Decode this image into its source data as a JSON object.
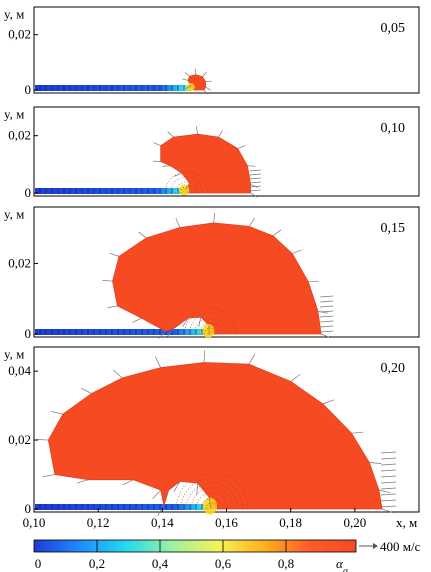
{
  "chart_data": {
    "type": "area",
    "units": {
      "y_axis": "y, м",
      "x_axis": "x, м",
      "velocity": "400 м/с"
    },
    "xlim": [
      0.1,
      0.22
    ],
    "x_ticks": [
      "0,10",
      "0,12",
      "0,14",
      "0,16",
      "0,18",
      "0,20"
    ],
    "panels": [
      {
        "time_label": "0,05",
        "ylim": [
          0,
          0.03
        ],
        "y_ticks": [
          {
            "v": 0,
            "label": "0"
          },
          {
            "v": 0.02,
            "label": "0,02"
          }
        ],
        "cloud": [
          [
            0.1495,
            0
          ],
          [
            0.149,
            0.0015
          ],
          [
            0.148,
            0.0035
          ],
          [
            0.1485,
            0.005
          ],
          [
            0.1505,
            0.0055
          ],
          [
            0.1525,
            0.0048
          ],
          [
            0.1535,
            0.003
          ],
          [
            0.1535,
            0.001
          ],
          [
            0.153,
            0
          ]
        ]
      },
      {
        "time_label": "0,10",
        "ylim": [
          0,
          0.03
        ],
        "y_ticks": [
          {
            "v": 0,
            "label": "0"
          },
          {
            "v": 0.02,
            "label": "0,02"
          }
        ],
        "cloud": [
          [
            0.1475,
            0
          ],
          [
            0.1485,
            0.0035
          ],
          [
            0.146,
            0.007
          ],
          [
            0.1425,
            0.0095
          ],
          [
            0.1395,
            0.011
          ],
          [
            0.1395,
            0.0165
          ],
          [
            0.1435,
            0.0195
          ],
          [
            0.151,
            0.0205
          ],
          [
            0.1575,
            0.0195
          ],
          [
            0.1635,
            0.0155
          ],
          [
            0.1665,
            0.0095
          ],
          [
            0.1675,
            0.003
          ],
          [
            0.1675,
            0
          ]
        ]
      },
      {
        "time_label": "0,15",
        "ylim": [
          0,
          0.036
        ],
        "y_ticks": [
          {
            "v": 0,
            "label": "0"
          },
          {
            "v": 0.02,
            "label": "0,02"
          }
        ],
        "cloud": [
          [
            0.155,
            0
          ],
          [
            0.1545,
            0.0025
          ],
          [
            0.152,
            0.0048
          ],
          [
            0.148,
            0.0045
          ],
          [
            0.1435,
            0.0015
          ],
          [
            0.141,
            0.0008
          ],
          [
            0.1335,
            0.0045
          ],
          [
            0.126,
            0.008
          ],
          [
            0.1245,
            0.015
          ],
          [
            0.1265,
            0.022
          ],
          [
            0.135,
            0.0272
          ],
          [
            0.1455,
            0.0302
          ],
          [
            0.156,
            0.0315
          ],
          [
            0.167,
            0.0305
          ],
          [
            0.1745,
            0.0278
          ],
          [
            0.1805,
            0.0228
          ],
          [
            0.1855,
            0.0148
          ],
          [
            0.1885,
            0.0065
          ],
          [
            0.1895,
            0
          ]
        ]
      },
      {
        "time_label": "0,20",
        "ylim": [
          0,
          0.047
        ],
        "y_ticks": [
          {
            "v": 0,
            "label": "0"
          },
          {
            "v": 0.02,
            "label": "0,02"
          },
          {
            "v": 0.04,
            "label": "0,04"
          }
        ],
        "cloud": [
          [
            0.1555,
            0
          ],
          [
            0.1545,
            0.0035
          ],
          [
            0.151,
            0.0075
          ],
          [
            0.1455,
            0.008
          ],
          [
            0.142,
            0.0055
          ],
          [
            0.1405,
            0.001
          ],
          [
            0.1395,
            0.0055
          ],
          [
            0.131,
            0.0085
          ],
          [
            0.117,
            0.0085
          ],
          [
            0.1065,
            0.01
          ],
          [
            0.1045,
            0.02
          ],
          [
            0.109,
            0.0275
          ],
          [
            0.118,
            0.0335
          ],
          [
            0.1275,
            0.038
          ],
          [
            0.1395,
            0.041
          ],
          [
            0.153,
            0.0425
          ],
          [
            0.167,
            0.042
          ],
          [
            0.18,
            0.037
          ],
          [
            0.19,
            0.0305
          ],
          [
            0.199,
            0.022
          ],
          [
            0.2045,
            0.0135
          ],
          [
            0.2075,
            0.0055
          ],
          [
            0.2085,
            0
          ]
        ]
      }
    ],
    "colorbar": {
      "label": "α_g",
      "ticks": [
        "0",
        "0,2",
        "0,4",
        "0,6",
        "0,8"
      ],
      "colors": [
        "#1f3bd6",
        "#1f8bff",
        "#24d9f0",
        "#9ef0a0",
        "#f3f35a",
        "#ffb01c",
        "#ff5a2a",
        "#f64a23"
      ],
      "cloud_color": "#f64a23"
    }
  }
}
